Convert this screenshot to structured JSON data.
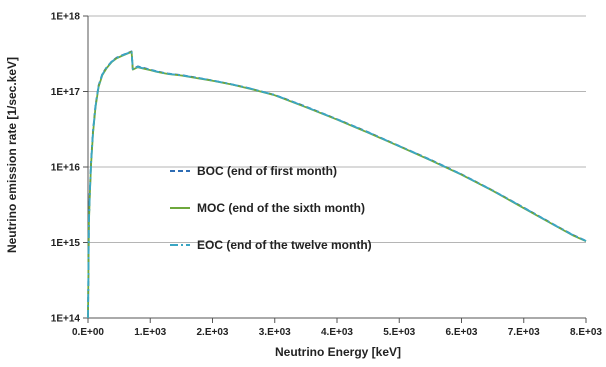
{
  "chart_data": {
    "type": "line",
    "title": "",
    "xlabel": "Neutrino Energy [keV]",
    "ylabel": "Neutrino emission rate  [1/sec.keV]",
    "x_scale": "linear",
    "y_scale": "log",
    "xlim": [
      0,
      8000
    ],
    "ylim": [
      100000000000000.0,
      1e+18
    ],
    "grid": {
      "horizontal": true,
      "vertical": false
    },
    "legend_position": "center",
    "x_ticks": [
      {
        "value": 0,
        "label": "0.E+00"
      },
      {
        "value": 1000,
        "label": "1.E+03"
      },
      {
        "value": 2000,
        "label": "2.E+03"
      },
      {
        "value": 3000,
        "label": "3.E+03"
      },
      {
        "value": 4000,
        "label": "4.E+03"
      },
      {
        "value": 5000,
        "label": "5.E+03"
      },
      {
        "value": 6000,
        "label": "6.E+03"
      },
      {
        "value": 7000,
        "label": "7.E+03"
      },
      {
        "value": 8000,
        "label": "8.E+03"
      }
    ],
    "y_ticks": [
      {
        "value": 100000000000000.0,
        "label": "1E+14"
      },
      {
        "value": 1000000000000000.0,
        "label": "1E+15"
      },
      {
        "value": 1e+16,
        "label": "1E+16"
      },
      {
        "value": 1e+17,
        "label": "1E+17"
      },
      {
        "value": 1e+18,
        "label": "1E+18"
      }
    ],
    "series": [
      {
        "name": "BOC (end of first month)",
        "color": "#2e6db4",
        "dash": "dashed",
        "x": [
          0,
          15,
          30,
          50,
          80,
          120,
          170,
          230,
          300,
          380,
          460,
          540,
          620,
          680,
          700,
          720,
          800,
          900,
          1000,
          1100,
          1200,
          1300,
          1500,
          1700,
          2000,
          2300,
          2600,
          3000,
          3500,
          4000,
          4500,
          5000,
          5500,
          6000,
          6500,
          7000,
          7500,
          7800,
          8000
        ],
        "y": [
          100000000000000.0,
          2000000000000000.0,
          5000000000000000.0,
          1.2e+16,
          3e+16,
          6.5e+16,
          1.2e+17,
          1.7e+17,
          2.1e+17,
          2.5e+17,
          2.8e+17,
          3e+17,
          3.2e+17,
          3.35e+17,
          3.4e+17,
          2e+17,
          2.15e+17,
          2.05e+17,
          1.95e+17,
          1.85e+17,
          1.78e+17,
          1.72e+17,
          1.65e+17,
          1.55e+17,
          1.4e+17,
          1.25e+17,
          1.1e+17,
          9e+16,
          6.3e+16,
          4.3e+16,
          2.9e+16,
          1.9e+16,
          1.25e+16,
          8000000000000000.0,
          4900000000000000.0,
          2900000000000000.0,
          1700000000000000.0,
          1250000000000000.0,
          1050000000000000.0
        ]
      },
      {
        "name": "MOC (end of the sixth month)",
        "color": "#6ea83c",
        "dash": "solid",
        "x": [
          0,
          15,
          30,
          50,
          80,
          120,
          170,
          230,
          300,
          380,
          460,
          540,
          620,
          680,
          700,
          720,
          800,
          900,
          1000,
          1100,
          1200,
          1300,
          1500,
          1700,
          2000,
          2300,
          2600,
          3000,
          3500,
          4000,
          4500,
          5000,
          5500,
          6000,
          6500,
          7000,
          7500,
          7800,
          8000
        ],
        "y": [
          100000000000000.0,
          1800000000000000.0,
          4600000000000000.0,
          1.1e+16,
          2.8e+16,
          6.2e+16,
          1.15e+17,
          1.65e+17,
          2.05e+17,
          2.45e+17,
          2.75e+17,
          2.95e+17,
          3.15e+17,
          3.3e+17,
          3.35e+17,
          1.95e+17,
          2.1e+17,
          2e+17,
          1.92e+17,
          1.83e+17,
          1.76e+17,
          1.7e+17,
          1.63e+17,
          1.53e+17,
          1.39e+17,
          1.24e+17,
          1.09e+17,
          8.9e+16,
          6.2e+16,
          4.25e+16,
          2.85e+16,
          1.88e+16,
          1.23e+16,
          7900000000000000.0,
          4850000000000000.0,
          2850000000000000.0,
          1680000000000000.0,
          1230000000000000.0,
          1040000000000000.0
        ]
      },
      {
        "name": "EOC (end of the twelve  month)",
        "color": "#3aa6c4",
        "dash": "dashdot",
        "x": [
          0,
          15,
          30,
          50,
          80,
          120,
          170,
          230,
          300,
          380,
          460,
          540,
          620,
          680,
          700,
          720,
          800,
          900,
          1000,
          1100,
          1200,
          1300,
          1500,
          1700,
          2000,
          2300,
          2600,
          3000,
          3500,
          4000,
          4500,
          5000,
          5500,
          6000,
          6500,
          7000,
          7500,
          7800,
          8000
        ],
        "y": [
          100000000000000.0,
          1900000000000000.0,
          4800000000000000.0,
          1.15e+16,
          2.9e+16,
          6.4e+16,
          1.18e+17,
          1.68e+17,
          2.08e+17,
          2.48e+17,
          2.78e+17,
          2.98e+17,
          3.18e+17,
          3.32e+17,
          3.38e+17,
          1.98e+17,
          2.12e+17,
          2.02e+17,
          1.94e+17,
          1.84e+17,
          1.77e+17,
          1.71e+17,
          1.64e+17,
          1.54e+17,
          1.4e+17,
          1.25e+17,
          1.1e+17,
          9e+16,
          6.25e+16,
          4.28e+16,
          2.88e+16,
          1.89e+16,
          1.24e+16,
          7950000000000000.0,
          4880000000000000.0,
          2880000000000000.0,
          1690000000000000.0,
          1240000000000000.0,
          1050000000000000.0
        ]
      }
    ]
  }
}
